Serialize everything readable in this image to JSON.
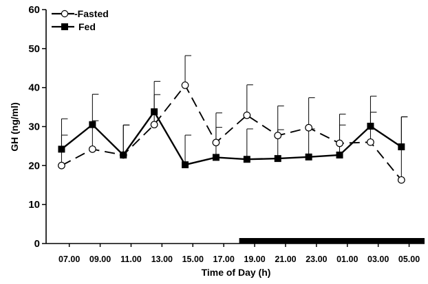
{
  "chart_data": {
    "type": "line",
    "title": "",
    "xlabel": "Time of Day (h)",
    "ylabel": "GH (ng/ml)",
    "categories": [
      "07.00",
      "09.00",
      "11.00",
      "13.00",
      "15.00",
      "17.00",
      "19.00",
      "21.00",
      "23.00",
      "01.00",
      "03.00",
      "05.00"
    ],
    "x": [
      7,
      9,
      11,
      13,
      15,
      17,
      19,
      21,
      23,
      25,
      27,
      29
    ],
    "ylim": [
      0,
      60
    ],
    "yticks": [
      0,
      10,
      20,
      30,
      40,
      50,
      60
    ],
    "legend_position": "top-left",
    "dark_period": {
      "start": 18,
      "end": 30
    },
    "series": [
      {
        "name": "Fasted",
        "legend_label": "-Fasted",
        "marker": "open-circle",
        "line_style": "dashed",
        "x": [
          6.5,
          8.5,
          10.5,
          12.5,
          14.5,
          16.5,
          18.5,
          20.5,
          22.5,
          24.5,
          26.5,
          28.5
        ],
        "values": [
          20,
          24.2,
          22.7,
          30.5,
          40.6,
          25.9,
          32.9,
          27.7,
          29.7,
          25.7,
          26,
          16.3
        ],
        "error_upper": [
          27.8,
          31.5,
          30.4,
          38.2,
          48.2,
          29.8,
          40.7,
          35.3,
          37.4,
          33.2,
          33.7,
          32.5
        ]
      },
      {
        "name": "Fed",
        "legend_label": "Fed",
        "marker": "filled-square",
        "line_style": "solid",
        "x": [
          6.5,
          8.5,
          10.5,
          12.5,
          14.5,
          16.5,
          18.5,
          20.5,
          22.5,
          24.5,
          26.5,
          28.5
        ],
        "values": [
          24.2,
          30.5,
          22.7,
          33.8,
          20.2,
          22.1,
          21.6,
          21.8,
          22.2,
          22.7,
          30.1,
          24.8
        ],
        "error_upper": [
          32,
          38.3,
          30.4,
          41.6,
          27.8,
          33.5,
          29.4,
          29.2,
          29.4,
          30.4,
          37.8,
          32.5
        ]
      }
    ]
  }
}
